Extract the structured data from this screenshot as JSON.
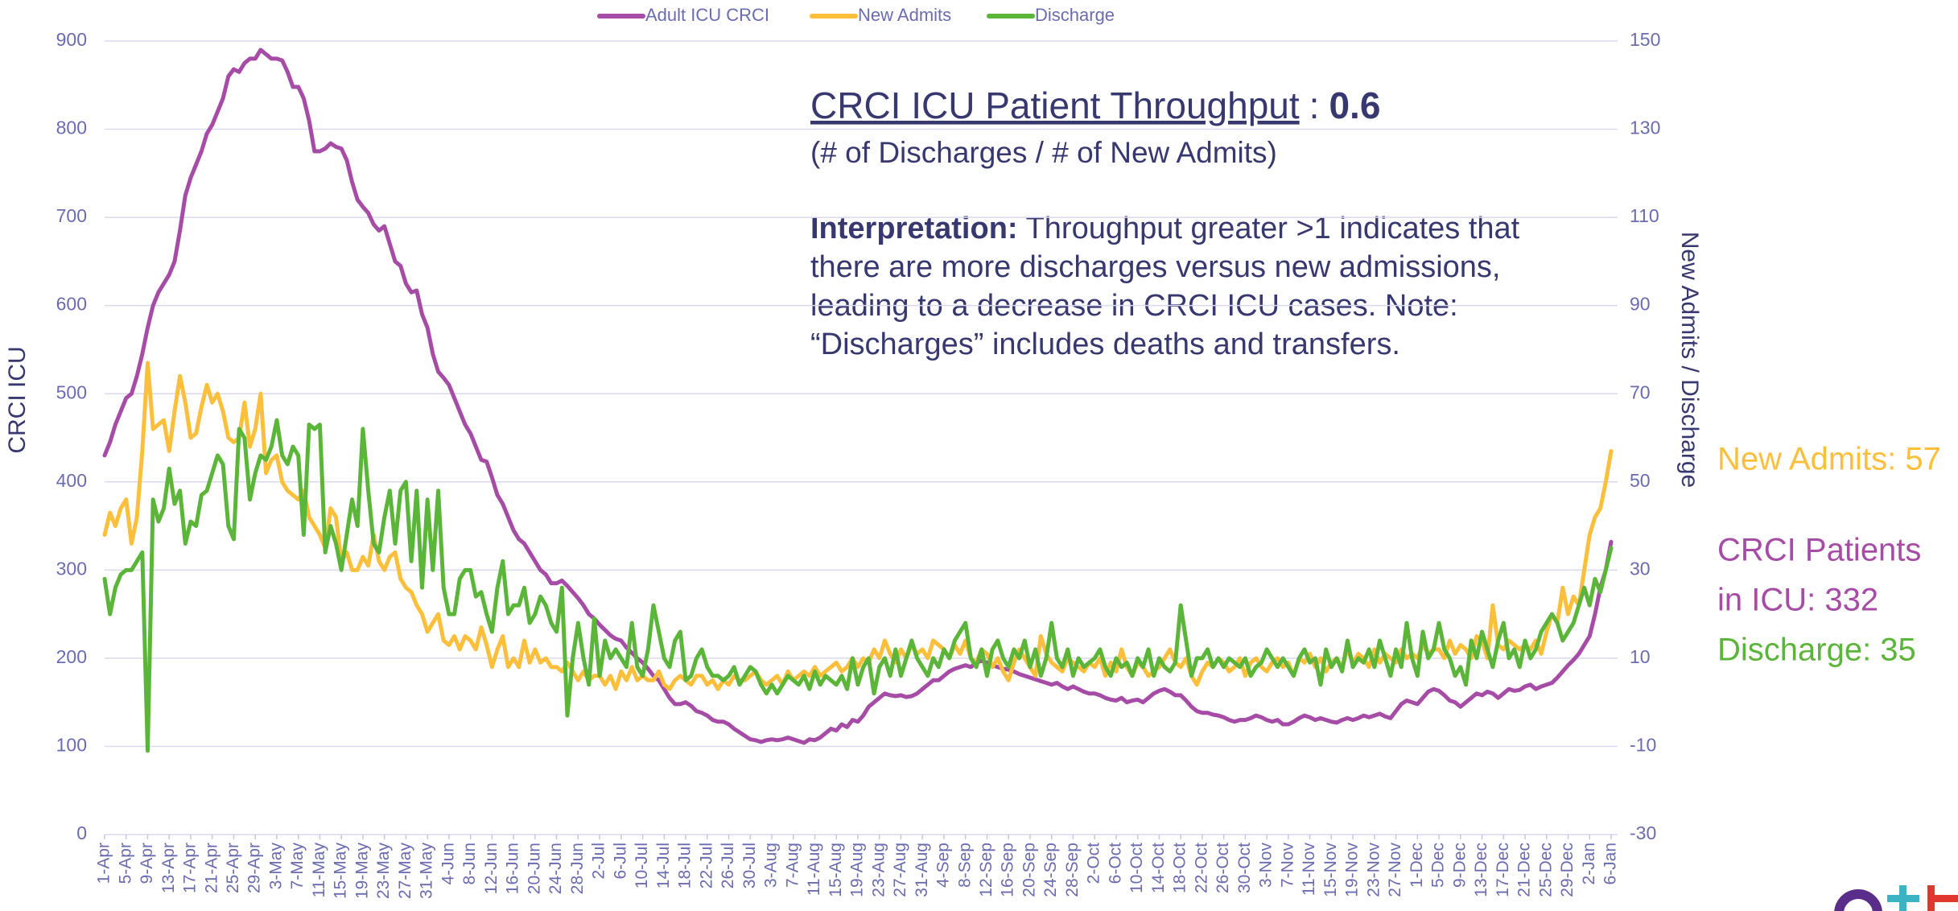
{
  "chart_data": {
    "type": "line",
    "annotation": {
      "title": "CRCI ICU Patient Throughput",
      "separator": ":",
      "value": "0.6",
      "subtitle": "(# of Discharges / # of New Admits)",
      "interpretation_label": "Interpretation:",
      "interpretation_lines": [
        "Throughput greater >1 indicates that",
        "there are more discharges versus new admissions,",
        "leading to a decrease in CRCI ICU cases. Note:",
        "“Discharges” includes deaths and transfers."
      ]
    },
    "side_labels": {
      "new_admits": "New Admits: 57",
      "patients": [
        "CRCI Patients",
        "in ICU: 332"
      ],
      "discharge": "Discharge: 35"
    },
    "ylabel": "CRCI ICU",
    "y2label": "New Admits / Discharge",
    "ylim": [
      0,
      900
    ],
    "yticks": [
      0,
      100,
      200,
      300,
      400,
      500,
      600,
      700,
      800,
      900
    ],
    "y2lim": [
      -30,
      150
    ],
    "y2ticks": [
      -30,
      -10,
      10,
      30,
      50,
      70,
      90,
      110,
      130,
      150
    ],
    "grid": true,
    "legend": "top",
    "categories": [
      "1-Apr",
      null,
      null,
      null,
      "5-Apr",
      null,
      null,
      null,
      "9-Apr",
      null,
      null,
      null,
      "13-Apr",
      null,
      null,
      null,
      "17-Apr",
      null,
      null,
      null,
      "21-Apr",
      null,
      null,
      null,
      "25-Apr",
      null,
      null,
      null,
      "29-Apr",
      null,
      null,
      null,
      "3-May",
      null,
      null,
      null,
      "7-May",
      null,
      null,
      null,
      "11-May",
      null,
      null,
      null,
      "15-May",
      null,
      null,
      null,
      "19-May",
      null,
      null,
      null,
      "23-May",
      null,
      null,
      null,
      "27-May",
      null,
      null,
      null,
      "31-May",
      null,
      null,
      null,
      "4-Jun",
      null,
      null,
      null,
      "8-Jun",
      null,
      null,
      null,
      "12-Jun",
      null,
      null,
      null,
      "16-Jun",
      null,
      null,
      null,
      "20-Jun",
      null,
      null,
      null,
      "24-Jun",
      null,
      null,
      null,
      "28-Jun",
      null,
      null,
      null,
      "2-Jul",
      null,
      null,
      null,
      "6-Jul",
      null,
      null,
      null,
      "10-Jul",
      null,
      null,
      null,
      "14-Jul",
      null,
      null,
      null,
      "18-Jul",
      null,
      null,
      null,
      "22-Jul",
      null,
      null,
      null,
      "26-Jul",
      null,
      null,
      null,
      "30-Jul",
      null,
      null,
      null,
      "3-Aug",
      null,
      null,
      null,
      "7-Aug",
      null,
      null,
      null,
      "11-Aug",
      null,
      null,
      null,
      "15-Aug",
      null,
      null,
      null,
      "19-Aug",
      null,
      null,
      null,
      "23-Aug",
      null,
      null,
      null,
      "27-Aug",
      null,
      null,
      null,
      "31-Aug",
      null,
      null,
      null,
      "4-Sep",
      null,
      null,
      null,
      "8-Sep",
      null,
      null,
      null,
      "12-Sep",
      null,
      null,
      null,
      "16-Sep",
      null,
      null,
      null,
      "20-Sep",
      null,
      null,
      null,
      "24-Sep",
      null,
      null,
      null,
      "28-Sep",
      null,
      null,
      null,
      "2-Oct",
      null,
      null,
      null,
      "6-Oct",
      null,
      null,
      null,
      "10-Oct",
      null,
      null,
      null,
      "14-Oct",
      null,
      null,
      null,
      "18-Oct",
      null,
      null,
      null,
      "22-Oct",
      null,
      null,
      null,
      "26-Oct",
      null,
      null,
      null,
      "30-Oct",
      null,
      null,
      null,
      "3-Nov",
      null,
      null,
      null,
      "7-Nov",
      null,
      null,
      null,
      "11-Nov",
      null,
      null,
      null,
      "15-Nov",
      null,
      null,
      null,
      "19-Nov",
      null,
      null,
      null,
      "23-Nov",
      null,
      null,
      null,
      "27-Nov",
      null,
      null,
      null,
      "1-Dec",
      null,
      null,
      null,
      "5-Dec",
      null,
      null,
      null,
      "9-Dec",
      null,
      null,
      null,
      "13-Dec",
      null,
      null,
      null,
      "17-Dec",
      null,
      null,
      null,
      "21-Dec",
      null,
      null,
      null,
      "25-Dec",
      null,
      null,
      null,
      "29-Dec",
      null,
      null,
      null,
      "2-Jan",
      null,
      null,
      null,
      "6-Jan"
    ],
    "series": [
      {
        "name": "Adult ICU CRCI",
        "color": "#a64ca6",
        "axis": "y",
        "values": [
          430,
          445,
          465,
          480,
          495,
          500,
          520,
          545,
          575,
          600,
          615,
          625,
          635,
          650,
          685,
          725,
          745,
          760,
          775,
          795,
          805,
          820,
          835,
          860,
          868,
          865,
          875,
          880,
          880,
          890,
          885,
          880,
          880,
          878,
          865,
          848,
          848,
          835,
          810,
          775,
          775,
          778,
          784,
          780,
          778,
          765,
          740,
          720,
          712,
          705,
          692,
          685,
          690,
          670,
          650,
          645,
          625,
          615,
          617,
          590,
          575,
          545,
          525,
          518,
          510,
          495,
          480,
          465,
          455,
          440,
          425,
          423,
          405,
          385,
          375,
          360,
          345,
          335,
          330,
          320,
          310,
          300,
          295,
          285,
          285,
          288,
          282,
          275,
          268,
          260,
          250,
          245,
          238,
          232,
          226,
          222,
          220,
          212,
          206,
          200,
          195,
          188,
          180,
          175,
          165,
          155,
          148,
          148,
          150,
          146,
          140,
          138,
          135,
          130,
          128,
          128,
          125,
          120,
          116,
          112,
          108,
          107,
          105,
          107,
          108,
          107,
          108,
          110,
          108,
          106,
          104,
          108,
          107,
          110,
          115,
          120,
          118,
          125,
          122,
          130,
          128,
          135,
          145,
          150,
          155,
          160,
          158,
          157,
          158,
          156,
          157,
          160,
          165,
          170,
          175,
          175,
          180,
          185,
          188,
          190,
          192,
          190,
          195,
          197,
          195,
          192,
          190,
          188,
          187,
          185,
          182,
          180,
          178,
          176,
          174,
          172,
          170,
          172,
          168,
          165,
          168,
          165,
          162,
          160,
          160,
          158,
          155,
          153,
          152,
          155,
          150,
          152,
          153,
          150,
          155,
          160,
          163,
          165,
          162,
          158,
          158,
          152,
          145,
          140,
          138,
          138,
          136,
          135,
          133,
          130,
          128,
          130,
          130,
          132,
          135,
          133,
          130,
          128,
          130,
          125,
          125,
          128,
          132,
          135,
          133,
          130,
          132,
          130,
          128,
          127,
          130,
          132,
          130,
          132,
          135,
          133,
          135,
          137,
          134,
          132,
          140,
          148,
          152,
          150,
          148,
          155,
          162,
          165,
          163,
          158,
          152,
          150,
          145,
          150,
          155,
          160,
          158,
          162,
          160,
          155,
          160,
          165,
          163,
          164,
          168,
          170,
          165,
          168,
          170,
          172,
          178,
          185,
          192,
          198,
          205,
          215,
          225,
          250,
          280,
          300,
          332
        ]
      },
      {
        "name": "New Admits",
        "color": "#fbbf3c",
        "axis": "y2",
        "values": [
          38,
          43,
          40,
          44,
          46,
          36,
          42,
          57,
          77,
          62,
          63,
          64,
          57,
          66,
          74,
          68,
          60,
          61,
          67,
          72,
          68,
          70,
          66,
          60,
          59,
          60,
          68,
          58,
          62,
          70,
          52,
          55,
          56,
          50,
          48,
          47,
          46,
          48,
          42,
          40,
          38,
          35,
          44,
          42,
          32,
          34,
          30,
          30,
          33,
          31,
          38,
          32,
          30,
          33,
          34,
          28,
          26,
          25,
          22,
          20,
          16,
          18,
          20,
          14,
          13,
          15,
          12,
          15,
          14,
          12,
          17,
          13,
          8,
          12,
          15,
          8,
          10,
          8,
          14,
          9,
          12,
          9,
          10,
          8,
          8,
          7,
          9,
          7,
          5,
          7,
          5,
          6,
          6,
          4,
          6,
          3,
          7,
          5,
          8,
          5,
          6,
          5,
          5,
          7,
          4,
          3,
          5,
          6,
          5,
          4,
          6,
          6,
          4,
          5,
          3,
          5,
          4,
          6,
          5,
          5,
          6,
          7,
          5,
          4,
          5,
          6,
          4,
          7,
          5,
          6,
          7,
          6,
          8,
          6,
          7,
          8,
          9,
          7,
          8,
          10,
          8,
          10,
          9,
          12,
          10,
          14,
          11,
          9,
          12,
          10,
          13,
          11,
          12,
          10,
          14,
          13,
          12,
          10,
          13,
          11,
          14,
          10,
          9,
          12,
          11,
          8,
          10,
          7,
          5,
          9,
          12,
          10,
          8,
          6,
          15,
          11,
          9,
          8,
          7,
          10,
          9,
          8,
          7,
          9,
          8,
          10,
          6,
          9,
          7,
          12,
          8,
          6,
          9,
          8,
          6,
          7,
          8,
          10,
          12,
          9,
          8,
          10,
          6,
          4,
          7,
          9,
          8,
          10,
          9,
          7,
          8,
          10,
          6,
          9,
          10,
          8,
          7,
          9,
          10,
          8,
          9,
          6,
          10,
          9,
          11,
          8,
          10,
          7,
          9,
          10,
          8,
          12,
          9,
          11,
          10,
          8,
          12,
          9,
          11,
          10,
          9,
          12,
          10,
          11,
          10,
          13,
          11,
          12,
          12,
          10,
          14,
          11,
          13,
          12,
          10,
          15,
          14,
          10,
          22,
          13,
          12,
          14,
          13,
          12,
          13,
          12,
          14,
          11,
          16,
          20,
          18,
          26,
          20,
          24,
          22,
          30,
          38,
          42,
          44,
          50,
          57
        ]
      },
      {
        "name": "Discharge",
        "color": "#5ab539",
        "axis": "y2",
        "values": [
          28,
          20,
          26,
          29,
          30,
          30,
          32,
          34,
          -11,
          46,
          41,
          44,
          53,
          45,
          48,
          36,
          41,
          40,
          47,
          48,
          52,
          56,
          54,
          40,
          37,
          62,
          60,
          46,
          52,
          56,
          55,
          58,
          64,
          56,
          54,
          58,
          56,
          38,
          63,
          62,
          63,
          34,
          40,
          36,
          30,
          38,
          46,
          40,
          62,
          48,
          36,
          34,
          42,
          48,
          36,
          48,
          50,
          32,
          48,
          26,
          46,
          30,
          48,
          26,
          20,
          20,
          28,
          30,
          30,
          24,
          25,
          20,
          16,
          26,
          32,
          20,
          22,
          22,
          26,
          18,
          20,
          24,
          22,
          18,
          16,
          26,
          -3,
          10,
          18,
          10,
          4,
          19,
          6,
          14,
          10,
          12,
          10,
          8,
          18,
          8,
          6,
          12,
          22,
          16,
          10,
          8,
          14,
          16,
          5,
          6,
          10,
          12,
          8,
          6,
          6,
          5,
          6,
          8,
          4,
          6,
          8,
          7,
          4,
          2,
          4,
          2,
          4,
          6,
          5,
          4,
          6,
          3,
          7,
          4,
          6,
          5,
          4,
          6,
          3,
          10,
          4,
          8,
          10,
          2,
          8,
          10,
          6,
          12,
          6,
          10,
          14,
          10,
          8,
          6,
          10,
          8,
          12,
          10,
          14,
          16,
          18,
          10,
          8,
          12,
          6,
          12,
          14,
          10,
          8,
          12,
          10,
          14,
          8,
          12,
          6,
          10,
          18,
          10,
          8,
          12,
          6,
          10,
          8,
          9,
          10,
          12,
          8,
          6,
          10,
          8,
          9,
          6,
          10,
          8,
          12,
          6,
          10,
          8,
          7,
          9,
          22,
          14,
          6,
          10,
          10,
          12,
          8,
          10,
          8,
          10,
          9,
          8,
          10,
          6,
          8,
          9,
          12,
          10,
          8,
          10,
          8,
          6,
          10,
          12,
          9,
          10,
          4,
          12,
          8,
          10,
          7,
          14,
          8,
          10,
          9,
          12,
          8,
          14,
          10,
          6,
          12,
          8,
          18,
          10,
          6,
          16,
          10,
          12,
          18,
          12,
          10,
          6,
          8,
          4,
          14,
          10,
          16,
          12,
          8,
          14,
          18,
          10,
          12,
          8,
          14,
          10,
          12,
          16,
          18,
          20,
          18,
          14,
          16,
          18,
          22,
          26,
          22,
          28,
          25,
          30,
          35
        ]
      }
    ]
  }
}
